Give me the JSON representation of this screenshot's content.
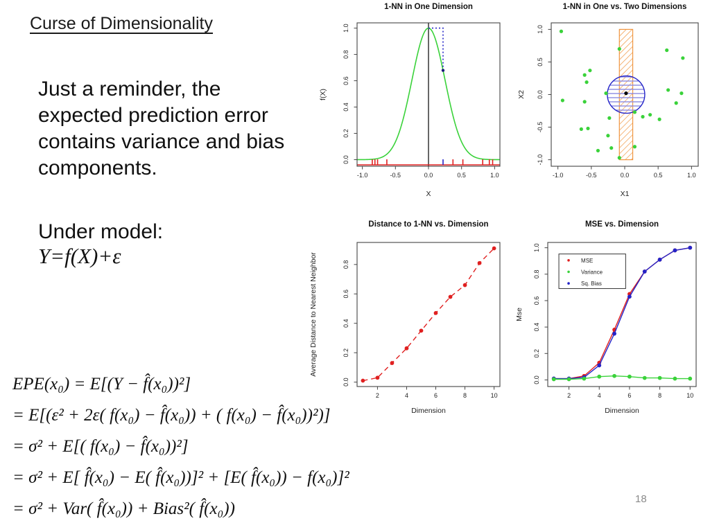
{
  "slide": {
    "title": "Curse of Dimensionality",
    "intro_text": "Just a reminder, the\nexpected prediction error\ncontains variance and bias\ncomponents.",
    "under_model_label": "Under model:",
    "model_formula": "Y=f(X)+ε",
    "page_number": "18"
  },
  "equations": {
    "lines": [
      "EPE(x₀) = E[(Y − f̂(x₀))²]",
      "= E[(ε² + 2ε( f(x₀) − f̂(x₀)) + ( f(x₀) − f̂(x₀))²)]",
      "= σ² + E[( f(x₀) − f̂(x₀))²]",
      "= σ² + E[ f̂(x₀) − E( f̂(x₀))]² + [E( f̂(x₀)) − f(x₀)]²",
      "= σ² + Var( f̂(x₀)) + Bias²( f̂(x₀))"
    ]
  },
  "colors": {
    "green": "#3ad23a",
    "red": "#e02020",
    "blue": "#2424c8",
    "light_blue": "#8a8ae0",
    "orange": "#f0953f",
    "black": "#000000",
    "frame": "#444444"
  },
  "chart_data": [
    {
      "type": "curve_rug",
      "title": "1-NN in One Dimension",
      "xlabel": "X",
      "ylabel": "f(X)",
      "xlim": [
        -1.08,
        1.08
      ],
      "ylim": [
        -0.05,
        1.04
      ],
      "xticks": [
        -1.0,
        -0.5,
        0.0,
        0.5,
        1.0
      ],
      "xtick_labels": [
        "-1.0",
        "-0.5",
        "0.0",
        "0.5",
        "1.0"
      ],
      "yticks": [
        0.0,
        0.2,
        0.4,
        0.6,
        0.8,
        1.0
      ],
      "ytick_labels": [
        "0.0",
        "0.2",
        "0.4",
        "0.6",
        "0.8",
        "1.0"
      ],
      "curve": {
        "formula": "f(x) = exp(-8x²)",
        "gauss_a": 8,
        "color": "#3ad23a"
      },
      "vline_x": 0,
      "nn_path": {
        "points": [
          [
            0,
            1.0
          ],
          [
            0.22,
            1.0
          ],
          [
            0.22,
            0.679
          ]
        ],
        "color": "#2424c8",
        "style": "dotted"
      },
      "rug_red": [
        -0.85,
        -0.81,
        -0.77,
        -0.63,
        0.37,
        0.52,
        0.82,
        0.92,
        0.97
      ],
      "rug_blue": [
        0.22
      ]
    },
    {
      "type": "scatter_2d",
      "title": "1-NN in One vs. Two Dimensions",
      "xlabel": "X1",
      "ylabel": "X2",
      "xlim": [
        -1.1,
        1.1
      ],
      "ylim": [
        -1.1,
        1.1
      ],
      "xticks": [
        -1.0,
        -0.5,
        0.0,
        0.5,
        1.0
      ],
      "xtick_labels": [
        "-1.0",
        "-0.5",
        "0.0",
        "0.5",
        "1.0"
      ],
      "yticks": [
        -1.0,
        -0.5,
        0.0,
        0.5,
        1.0
      ],
      "ytick_labels": [
        "-1.0",
        "-0.5",
        "0.0",
        "0.5",
        "1.0"
      ],
      "band": {
        "x0": -0.08,
        "x1": 0.12,
        "y0": -1.0,
        "y1": 1.0,
        "color": "#f0953f"
      },
      "circle": {
        "cx": 0.02,
        "cy": 0.0,
        "r": 0.28,
        "outline": "#2424c8",
        "stripes": "#8a8ae0"
      },
      "center_point": [
        0.02,
        0.02
      ],
      "points": [
        [
          -0.95,
          0.97
        ],
        [
          -0.08,
          0.7
        ],
        [
          0.63,
          0.68
        ],
        [
          0.87,
          0.56
        ],
        [
          -0.52,
          0.37
        ],
        [
          -0.6,
          0.3
        ],
        [
          -0.57,
          0.19
        ],
        [
          -0.28,
          0.02
        ],
        [
          0.65,
          0.07
        ],
        [
          0.85,
          0.02
        ],
        [
          -0.93,
          -0.09
        ],
        [
          -0.6,
          -0.11
        ],
        [
          0.77,
          -0.13
        ],
        [
          0.15,
          -0.27
        ],
        [
          -0.23,
          -0.36
        ],
        [
          0.27,
          -0.34
        ],
        [
          0.38,
          -0.31
        ],
        [
          0.52,
          -0.38
        ],
        [
          -0.65,
          -0.53
        ],
        [
          -0.55,
          -0.52
        ],
        [
          -0.25,
          -0.63
        ],
        [
          -0.4,
          -0.86
        ],
        [
          -0.2,
          -0.82
        ],
        [
          0.15,
          -0.8
        ],
        [
          -0.08,
          -0.97
        ]
      ],
      "point_color": "#3ad23a"
    },
    {
      "type": "line_points",
      "title": "Distance to 1-NN vs. Dimension",
      "xlabel": "Dimension",
      "ylabel": "Average Distance to Nearest Neighbor",
      "xlim": [
        0.6,
        10.4
      ],
      "ylim": [
        -0.03,
        0.95
      ],
      "xticks": [
        2,
        4,
        6,
        8,
        10
      ],
      "xtick_labels": [
        "2",
        "4",
        "6",
        "8",
        "10"
      ],
      "yticks": [
        0.0,
        0.2,
        0.4,
        0.6,
        0.8
      ],
      "ytick_labels": [
        "0.0",
        "0.2",
        "0.4",
        "0.6",
        "0.8"
      ],
      "x": [
        1,
        2,
        3,
        4,
        5,
        6,
        7,
        8,
        9,
        10
      ],
      "series": [
        {
          "name": "Average distance",
          "color": "#e02020",
          "dash": "7,5",
          "values": [
            0.01,
            0.03,
            0.13,
            0.23,
            0.35,
            0.47,
            0.58,
            0.66,
            0.81,
            0.91
          ]
        }
      ],
      "show_legend": false
    },
    {
      "type": "line_points",
      "title": "MSE vs. Dimension",
      "xlabel": "Dimension",
      "ylabel": "Mse",
      "xlim": [
        0.6,
        10.4
      ],
      "ylim": [
        -0.05,
        1.04
      ],
      "xticks": [
        2,
        4,
        6,
        8,
        10
      ],
      "xtick_labels": [
        "2",
        "4",
        "6",
        "8",
        "10"
      ],
      "yticks": [
        0.0,
        0.2,
        0.4,
        0.6,
        0.8,
        1.0
      ],
      "ytick_labels": [
        "0.0",
        "0.2",
        "0.4",
        "0.6",
        "0.8",
        "1.0"
      ],
      "x": [
        1,
        2,
        3,
        4,
        5,
        6,
        7,
        8,
        9,
        10
      ],
      "series": [
        {
          "name": "MSE",
          "color": "#e02020",
          "dash": "",
          "values": [
            0.01,
            0.01,
            0.03,
            0.13,
            0.38,
            0.65,
            0.82,
            0.91,
            0.98,
            1.0
          ]
        },
        {
          "name": "Sq. Bias",
          "color": "#2424c8",
          "dash": "",
          "values": [
            0.01,
            0.01,
            0.02,
            0.11,
            0.35,
            0.63,
            0.82,
            0.91,
            0.98,
            1.0
          ]
        },
        {
          "name": "Variance",
          "color": "#3ad23a",
          "dash": "",
          "values": [
            0.005,
            0.005,
            0.01,
            0.025,
            0.03,
            0.025,
            0.015,
            0.015,
            0.01,
            0.01
          ]
        }
      ],
      "show_legend": true,
      "legend_order": [
        "MSE",
        "Variance",
        "Sq. Bias"
      ]
    }
  ]
}
